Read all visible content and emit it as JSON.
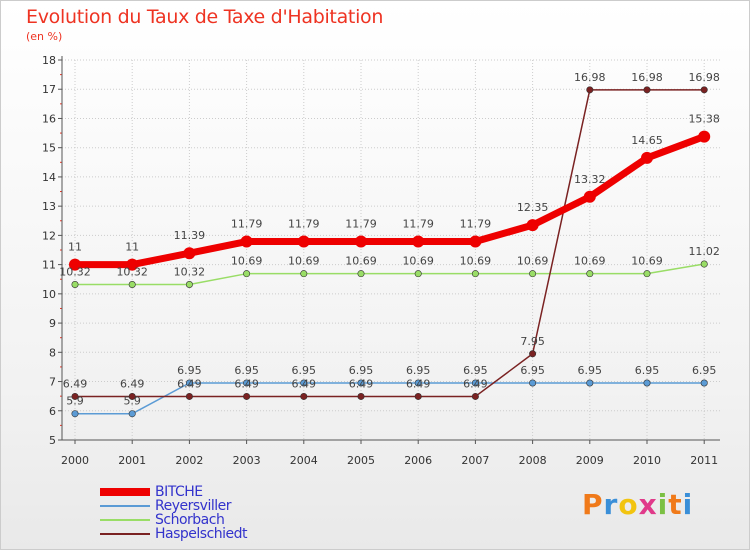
{
  "chart_data": {
    "type": "line",
    "title": "Evolution du Taux de Taxe d'Habitation",
    "ylabel": "(en %)",
    "xlabel": "",
    "ylim": [
      5,
      18
    ],
    "yticks": [
      5,
      6,
      7,
      8,
      9,
      10,
      11,
      12,
      13,
      14,
      15,
      16,
      17,
      18
    ],
    "categories": [
      "2000",
      "2001",
      "2002",
      "2003",
      "2004",
      "2005",
      "2006",
      "2007",
      "2008",
      "2009",
      "2010",
      "2011"
    ],
    "grid": true,
    "legend": "bottom-left",
    "series": [
      {
        "name": "BITCHE",
        "color": "#ee0000",
        "values": [
          11,
          11,
          11.39,
          11.79,
          11.79,
          11.79,
          11.79,
          11.79,
          12.35,
          13.32,
          14.65,
          15.38
        ],
        "labels": [
          "11",
          "11",
          "11.39",
          "11.79",
          "11.79",
          "11.79",
          "11.79",
          "11.79",
          "12.35",
          "13.32",
          "14.65",
          "15.38"
        ]
      },
      {
        "name": "Reyersviller",
        "color": "#5b9bd5",
        "values": [
          5.9,
          5.9,
          6.95,
          6.95,
          6.95,
          6.95,
          6.95,
          6.95,
          6.95,
          6.95,
          6.95,
          6.95
        ],
        "labels": [
          "5.9",
          "5.9",
          "6.95",
          "6.95",
          "6.95",
          "6.95",
          "6.95",
          "6.95",
          "6.95",
          "6.95",
          "6.95",
          "6.95"
        ]
      },
      {
        "name": "Schorbach",
        "color": "#99dd66",
        "values": [
          10.32,
          10.32,
          10.32,
          10.69,
          10.69,
          10.69,
          10.69,
          10.69,
          10.69,
          10.69,
          10.69,
          11.02
        ],
        "labels": [
          "10.32",
          "10.32",
          "10.32",
          "10.69",
          "10.69",
          "10.69",
          "10.69",
          "10.69",
          "10.69",
          "10.69",
          "10.69",
          "11.02"
        ]
      },
      {
        "name": "Haspelschiedt",
        "color": "#7a2222",
        "values": [
          6.49,
          6.49,
          6.49,
          6.49,
          6.49,
          6.49,
          6.49,
          6.49,
          7.95,
          16.98,
          16.98,
          16.98
        ],
        "labels": [
          "6.49",
          "6.49",
          "6.49",
          "6.49",
          "6.49",
          "6.49",
          "6.49",
          "6.49",
          "7.95",
          "16.98",
          "16.98",
          "16.98"
        ]
      }
    ]
  },
  "logo": {
    "letters": [
      "P",
      "r",
      "o",
      "x",
      "i",
      "t",
      "i"
    ],
    "colors": [
      "#f07a1a",
      "#3a8fd8",
      "#f2c40f",
      "#e03a8a",
      "#7bc043",
      "#f07a1a",
      "#3a8fd8"
    ]
  }
}
